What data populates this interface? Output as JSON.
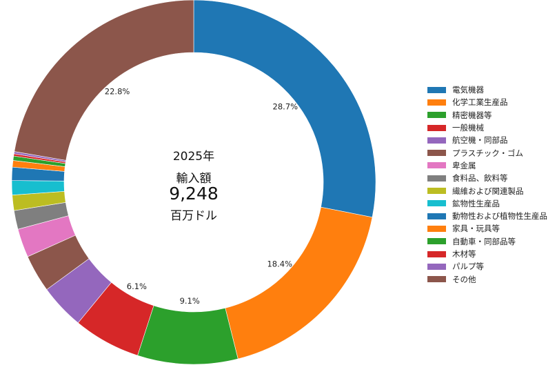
{
  "chart_data": {
    "type": "pie",
    "center": {
      "year": "2025年",
      "caption": "輸入額",
      "total": "9,248",
      "unit": "百万ドル"
    },
    "categories": [
      "電気機器",
      "化学工業生産品",
      "精密機器等",
      "一般機械",
      "航空機・同部品",
      "プラスチック・ゴム",
      "卑金属",
      "食料品、飲料等",
      "繊維および関連製品",
      "鉱物性生産品",
      "動物性および植物性生産品",
      "家具・玩具等",
      "自動車・同部品等",
      "木材等",
      "パルプ等",
      "その他"
    ],
    "values": [
      28.7,
      18.4,
      9.1,
      6.1,
      4.1,
      3.4,
      2.6,
      1.7,
      1.4,
      1.3,
      1.2,
      0.6,
      0.4,
      0.2,
      0.2,
      22.8
    ],
    "labels": [
      "28.7%",
      "18.4%",
      "9.1%",
      "6.1%",
      "",
      "",
      "",
      "",
      "",
      "",
      "",
      "",
      "",
      "",
      "",
      "22.8%"
    ],
    "colors": [
      "#1f77b4",
      "#ff7f0e",
      "#2ca02c",
      "#d62728",
      "#9467bd",
      "#8c564b",
      "#e377c2",
      "#7f7f7f",
      "#bcbd22",
      "#17becf",
      "#1f77b4",
      "#ff7f0e",
      "#2ca02c",
      "#d62728",
      "#9467bd",
      "#8c564b"
    ],
    "legend_position": "right"
  }
}
